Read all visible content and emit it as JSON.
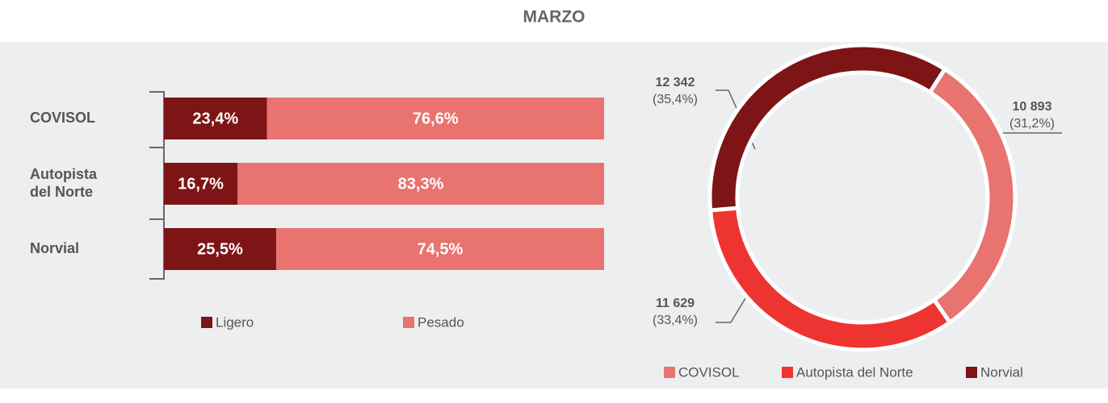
{
  "chart_data": [
    {
      "type": "bar",
      "title": "MARZO",
      "orientation": "horizontal",
      "stacked": true,
      "categories": [
        "COVISOL",
        "Autopista del Norte",
        "Norvial"
      ],
      "series": [
        {
          "name": "Ligero",
          "color": "#7d1416",
          "values": [
            23.4,
            16.7,
            25.5
          ],
          "value_labels": [
            "23,4%",
            "16,7%",
            "25,5%"
          ]
        },
        {
          "name": "Pesado",
          "color": "#e8736f",
          "values": [
            76.6,
            83.3,
            74.5
          ],
          "value_labels": [
            "76,6%",
            "83,3%",
            "74,5%"
          ]
        }
      ],
      "xlim": [
        0,
        100
      ]
    },
    {
      "type": "pie",
      "donut": true,
      "categories": [
        "COVISOL",
        "Autopista del Norte",
        "Norvial"
      ],
      "values": [
        10893,
        11629,
        12342
      ],
      "value_labels": [
        "10 893",
        "11 629",
        "12 342"
      ],
      "percentages": [
        31.2,
        33.4,
        35.4
      ],
      "percentage_labels": [
        "(31,2%)",
        "(33,4%)",
        "(35,4%)"
      ],
      "colors": [
        "#e8736f",
        "#ee3430",
        "#7d1416"
      ]
    }
  ]
}
